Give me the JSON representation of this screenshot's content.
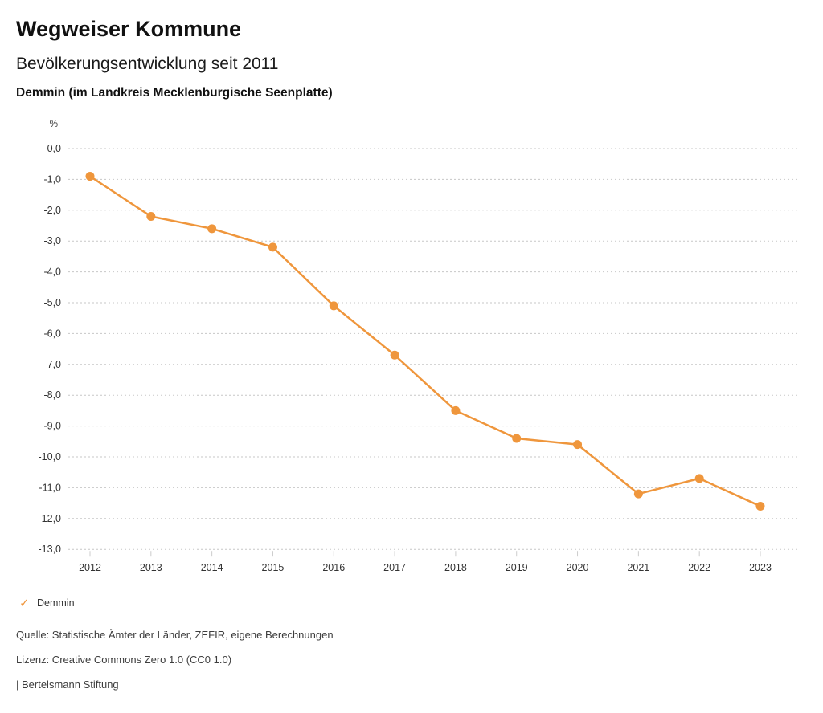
{
  "header": {
    "title": "Wegweiser Kommune",
    "subtitle": "Bevölkerungsentwicklung seit 2011",
    "region": "Demmin (im Landkreis Mecklenburgische Seenplatte)"
  },
  "chart_data": {
    "type": "line",
    "title": "Bevölkerungsentwicklung seit 2011",
    "unit_label": "%",
    "xlabel": "",
    "ylabel": "%",
    "categories": [
      "2012",
      "2013",
      "2014",
      "2015",
      "2016",
      "2017",
      "2018",
      "2019",
      "2020",
      "2021",
      "2022",
      "2023"
    ],
    "series": [
      {
        "name": "Demmin",
        "color": "#ef963c",
        "values": [
          -0.9,
          -2.2,
          -2.6,
          -3.2,
          -5.1,
          -6.7,
          -8.5,
          -9.4,
          -9.6,
          -11.2,
          -10.7,
          -11.6
        ]
      }
    ],
    "ylim": [
      -13,
      0
    ],
    "ytick_step": 1,
    "ytick_labels": [
      "0,0",
      "-1,0",
      "-2,0",
      "-3,0",
      "-4,0",
      "-5,0",
      "-6,0",
      "-7,0",
      "-8,0",
      "-9,0",
      "-10,0",
      "-11,0",
      "-12,0",
      "-13,0"
    ],
    "grid": "horizontal-dotted",
    "legend_position": "bottom-left",
    "colors": {
      "line": "#ef963c",
      "gridline": "#c7c7c7",
      "tick": "#cccccc",
      "axis_text": "#333333"
    }
  },
  "legend": {
    "checkmark": "✓",
    "label": "Demmin"
  },
  "footer": {
    "source": "Quelle: Statistische Ämter der Länder, ZEFIR, eigene Berechnungen",
    "license": "Lizenz: Creative Commons Zero 1.0 (CC0 1.0)",
    "attribution": "| Bertelsmann Stiftung"
  }
}
